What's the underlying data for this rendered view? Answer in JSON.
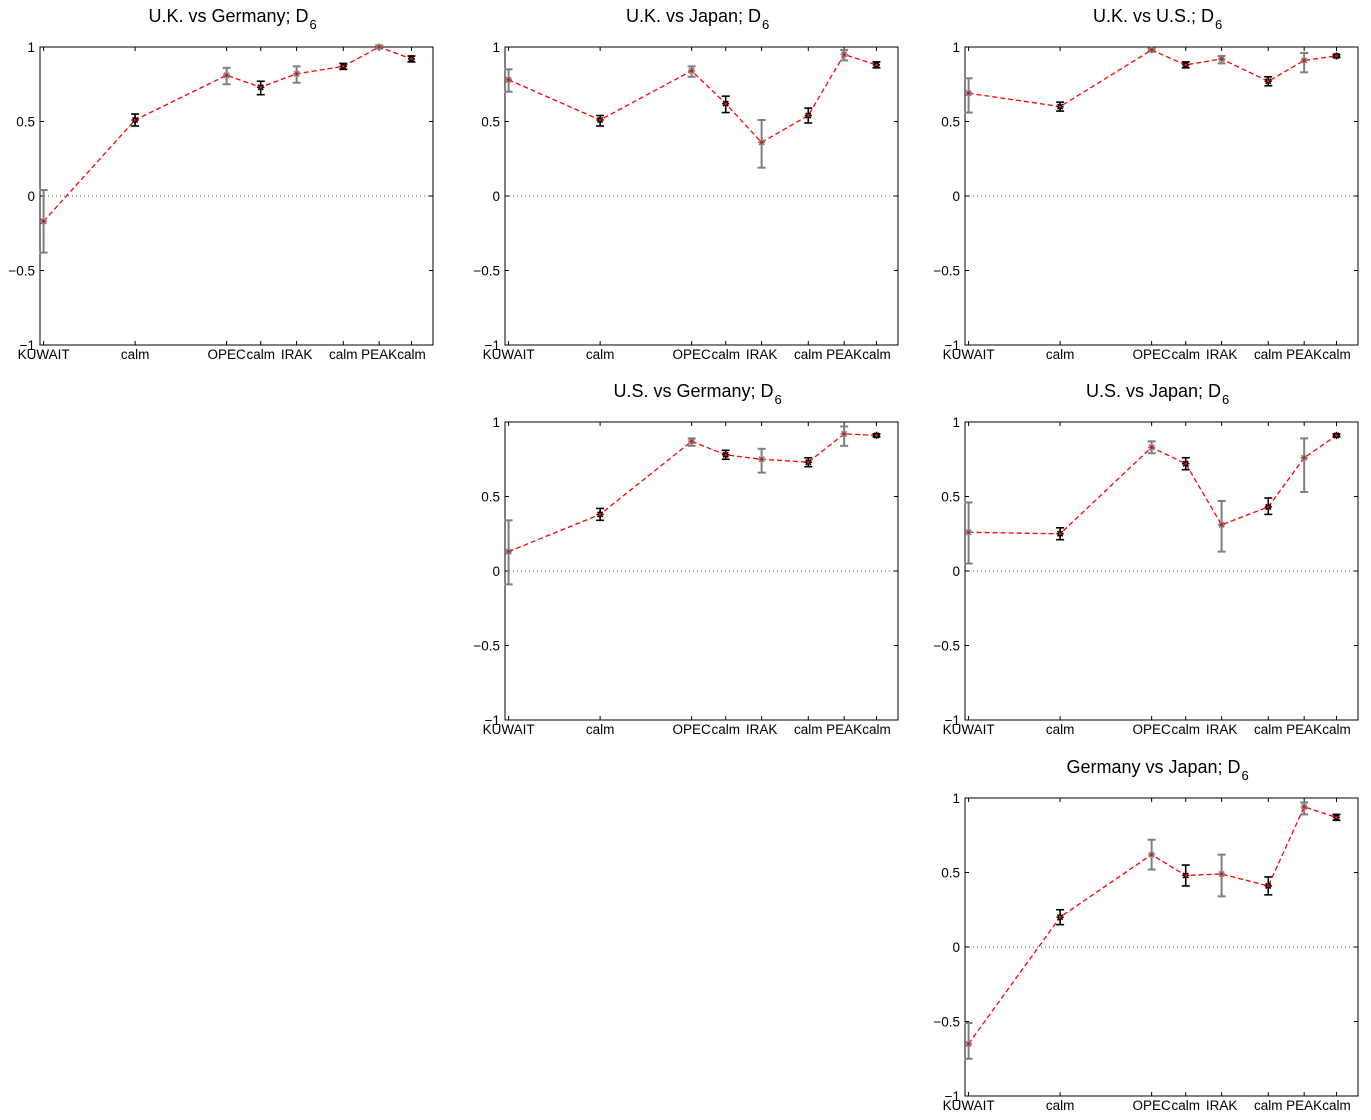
{
  "chart_data": [
    {
      "type": "line",
      "title": "U.K. vs Germany;  D",
      "title_subscript": "6",
      "categories": [
        "KUWAIT",
        "calm",
        "OPEC",
        "calm",
        "IRAK",
        "calm",
        "PEAK",
        "calm"
      ],
      "x": [
        1,
        3.55,
        6.1,
        7.05,
        8.05,
        9.35,
        10.35,
        11.25
      ],
      "values": [
        -0.17,
        0.51,
        0.81,
        0.73,
        0.82,
        0.87,
        1.0,
        0.92
      ],
      "err_low": [
        0.21,
        0.04,
        0.06,
        0.05,
        0.06,
        0.02,
        0.01,
        0.02
      ],
      "err_high": [
        0.21,
        0.04,
        0.05,
        0.04,
        0.05,
        0.02,
        0.01,
        0.02
      ],
      "point_style": [
        "grey",
        "black",
        "grey",
        "black",
        "grey",
        "black",
        "grey",
        "black"
      ],
      "ylim": [
        -1,
        1
      ],
      "yticks": [
        -1,
        -0.5,
        0,
        0.5,
        1
      ],
      "ytick_labels": [
        "−1",
        "−0.5",
        "0",
        "0.5",
        "1"
      ],
      "zero_line": true,
      "line_color": "#ff0000"
    },
    {
      "type": "line",
      "title": "U.K. vs Japan;  D",
      "title_subscript": "6",
      "categories": [
        "KUWAIT",
        "calm",
        "OPEC",
        "calm",
        "IRAK",
        "calm",
        "PEAK",
        "calm"
      ],
      "x": [
        1,
        3.55,
        6.1,
        7.05,
        8.05,
        9.35,
        10.35,
        11.25
      ],
      "values": [
        0.78,
        0.51,
        0.84,
        0.62,
        0.36,
        0.54,
        0.95,
        0.88
      ],
      "err_low": [
        0.08,
        0.04,
        0.04,
        0.06,
        0.17,
        0.05,
        0.04,
        0.02
      ],
      "err_high": [
        0.07,
        0.03,
        0.03,
        0.05,
        0.15,
        0.05,
        0.03,
        0.02
      ],
      "point_style": [
        "grey",
        "black",
        "grey",
        "black",
        "grey",
        "black",
        "grey",
        "black"
      ],
      "ylim": [
        -1,
        1
      ],
      "yticks": [
        -1,
        -0.5,
        0,
        0.5,
        1
      ],
      "ytick_labels": [
        "−1",
        "−0.5",
        "0",
        "0.5",
        "1"
      ],
      "zero_line": true,
      "line_color": "#ff0000"
    },
    {
      "type": "line",
      "title": "U.K. vs U.S.;  D",
      "title_subscript": "6",
      "categories": [
        "KUWAIT",
        "calm",
        "OPEC",
        "calm",
        "IRAK",
        "calm",
        "PEAK",
        "calm"
      ],
      "x": [
        1,
        3.55,
        6.1,
        7.05,
        8.05,
        9.35,
        10.35,
        11.25
      ],
      "values": [
        0.69,
        0.6,
        0.98,
        0.88,
        0.92,
        0.77,
        0.91,
        0.94
      ],
      "err_low": [
        0.13,
        0.03,
        0.01,
        0.02,
        0.03,
        0.03,
        0.08,
        0.01
      ],
      "err_high": [
        0.1,
        0.03,
        0.01,
        0.02,
        0.02,
        0.03,
        0.05,
        0.01
      ],
      "point_style": [
        "grey",
        "black",
        "grey",
        "black",
        "grey",
        "black",
        "grey",
        "black"
      ],
      "ylim": [
        -1,
        1
      ],
      "yticks": [
        -1,
        -0.5,
        0,
        0.5,
        1
      ],
      "ytick_labels": [
        "−1",
        "−0.5",
        "0",
        "0.5",
        "1"
      ],
      "zero_line": true,
      "line_color": "#ff0000"
    },
    {
      "type": "line",
      "title": "U.S. vs Germany;  D",
      "title_subscript": "6",
      "categories": [
        "KUWAIT",
        "calm",
        "OPEC",
        "calm",
        "IRAK",
        "calm",
        "PEAK",
        "calm"
      ],
      "x": [
        1,
        3.55,
        6.1,
        7.05,
        8.05,
        9.35,
        10.35,
        11.25
      ],
      "values": [
        0.13,
        0.38,
        0.87,
        0.78,
        0.75,
        0.73,
        0.92,
        0.91
      ],
      "err_low": [
        0.22,
        0.04,
        0.03,
        0.03,
        0.09,
        0.03,
        0.08,
        0.01
      ],
      "err_high": [
        0.21,
        0.04,
        0.02,
        0.03,
        0.07,
        0.03,
        0.05,
        0.01
      ],
      "point_style": [
        "grey",
        "black",
        "grey",
        "black",
        "grey",
        "black",
        "grey",
        "black"
      ],
      "ylim": [
        -1,
        1
      ],
      "yticks": [
        -1,
        -0.5,
        0,
        0.5,
        1
      ],
      "ytick_labels": [
        "−1",
        "−0.5",
        "0",
        "0.5",
        "1"
      ],
      "zero_line": true,
      "line_color": "#ff0000"
    },
    {
      "type": "line",
      "title": "U.S. vs Japan;  D",
      "title_subscript": "6",
      "categories": [
        "KUWAIT",
        "calm",
        "OPEC",
        "calm",
        "IRAK",
        "calm",
        "PEAK",
        "calm"
      ],
      "x": [
        1,
        3.55,
        6.1,
        7.05,
        8.05,
        9.35,
        10.35,
        11.25
      ],
      "values": [
        0.26,
        0.25,
        0.83,
        0.72,
        0.31,
        0.43,
        0.76,
        0.91
      ],
      "err_low": [
        0.21,
        0.04,
        0.04,
        0.04,
        0.18,
        0.05,
        0.23,
        0.01
      ],
      "err_high": [
        0.2,
        0.04,
        0.04,
        0.04,
        0.16,
        0.06,
        0.13,
        0.01
      ],
      "point_style": [
        "grey",
        "black",
        "grey",
        "black",
        "grey",
        "black",
        "grey",
        "black"
      ],
      "ylim": [
        -1,
        1
      ],
      "yticks": [
        -1,
        -0.5,
        0,
        0.5,
        1
      ],
      "ytick_labels": [
        "−1",
        "−0.5",
        "0",
        "0.5",
        "1"
      ],
      "zero_line": true,
      "line_color": "#ff0000"
    },
    {
      "type": "line",
      "title": "Germany vs Japan;  D",
      "title_subscript": "6",
      "categories": [
        "KUWAIT",
        "calm",
        "OPEC",
        "calm",
        "IRAK",
        "calm",
        "PEAK",
        "calm"
      ],
      "x": [
        1,
        3.55,
        6.1,
        7.05,
        8.05,
        9.35,
        10.35,
        11.25
      ],
      "values": [
        -0.65,
        0.2,
        0.62,
        0.48,
        0.49,
        0.41,
        0.94,
        0.87
      ],
      "err_low": [
        0.1,
        0.05,
        0.1,
        0.07,
        0.15,
        0.06,
        0.05,
        0.02
      ],
      "err_high": [
        0.14,
        0.05,
        0.1,
        0.07,
        0.13,
        0.06,
        0.03,
        0.02
      ],
      "point_style": [
        "grey",
        "black",
        "grey",
        "black",
        "grey",
        "black",
        "grey",
        "black"
      ],
      "ylim": [
        -1,
        1
      ],
      "yticks": [
        -1,
        -0.5,
        0,
        0.5,
        1
      ],
      "ytick_labels": [
        "−1",
        "−0.5",
        "0",
        "0.5",
        "1"
      ],
      "zero_line": true,
      "line_color": "#ff0000"
    }
  ]
}
